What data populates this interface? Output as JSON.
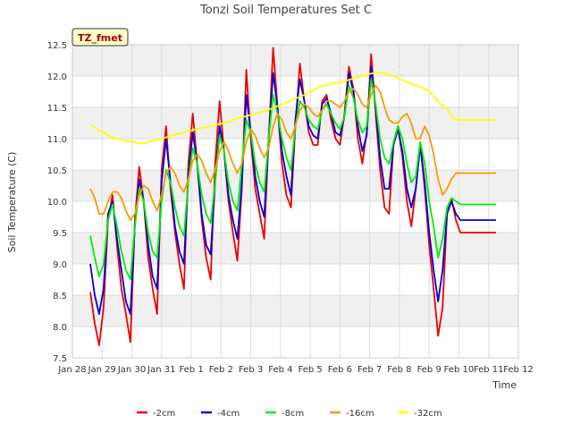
{
  "chart_data": {
    "type": "line",
    "title": "Tonzi Soil Temperatures Set C",
    "xlabel": "Time",
    "ylabel": "Soil Temperature (C)",
    "xlim": [
      0,
      15
    ],
    "ylim": [
      7.5,
      12.5
    ],
    "x_ticks": [
      0,
      1,
      2,
      3,
      4,
      5,
      6,
      7,
      8,
      9,
      10,
      11,
      12,
      13,
      14,
      15
    ],
    "x_tick_labels": [
      "Jan 28",
      "Jan 29",
      "Jan 30",
      "Jan 31",
      "Feb 1",
      "Feb 2",
      "Feb 3",
      "Feb 4",
      "Feb 5",
      "Feb 6",
      "Feb 7",
      "Feb 8",
      "Feb 9",
      "Feb 10",
      "Feb 11",
      "Feb 12"
    ],
    "y_ticks": [
      7.5,
      8.0,
      8.5,
      9.0,
      9.5,
      10.0,
      10.5,
      11.0,
      11.5,
      12.0,
      12.5
    ],
    "y_tick_labels": [
      "7.5",
      "8.0",
      "8.5",
      "9.0",
      "9.5",
      "10.0",
      "10.5",
      "11.0",
      "11.5",
      "12.0",
      "12.5"
    ],
    "grid": true,
    "legend_position": "bottom-center",
    "annotation": "TZ_fmet",
    "series": [
      {
        "name": "-2cm",
        "color": "#ee0000",
        "x": [
          0.6,
          0.75,
          0.9,
          1.05,
          1.2,
          1.35,
          1.5,
          1.65,
          1.8,
          1.95,
          2.1,
          2.25,
          2.4,
          2.55,
          2.7,
          2.85,
          3.0,
          3.15,
          3.3,
          3.45,
          3.6,
          3.75,
          3.9,
          4.05,
          4.2,
          4.35,
          4.5,
          4.65,
          4.8,
          4.95,
          5.1,
          5.25,
          5.4,
          5.55,
          5.7,
          5.85,
          6.0,
          6.15,
          6.3,
          6.45,
          6.6,
          6.75,
          6.9,
          7.05,
          7.2,
          7.35,
          7.5,
          7.65,
          7.8,
          7.95,
          8.1,
          8.25,
          8.4,
          8.55,
          8.7,
          8.85,
          9.0,
          9.15,
          9.3,
          9.45,
          9.6,
          9.75,
          9.9,
          10.05,
          10.2,
          10.35,
          10.5,
          10.65,
          10.8,
          10.95,
          11.1,
          11.25,
          11.4,
          11.55,
          11.7,
          11.85,
          12.0,
          12.15,
          12.3,
          12.45,
          12.6,
          12.75,
          12.9,
          13.05,
          13.2,
          13.35,
          13.5,
          13.65,
          13.8,
          13.95,
          14.1,
          14.25
        ],
        "y": [
          8.55,
          8.05,
          7.7,
          8.3,
          9.7,
          10.1,
          9.3,
          8.6,
          8.2,
          7.75,
          9.7,
          10.55,
          10.0,
          9.1,
          8.6,
          8.2,
          10.5,
          11.2,
          10.2,
          9.5,
          9.0,
          8.6,
          10.6,
          11.4,
          10.6,
          9.7,
          9.1,
          8.75,
          10.6,
          11.6,
          10.8,
          10.0,
          9.5,
          9.05,
          10.2,
          12.1,
          11.0,
          10.2,
          9.8,
          9.4,
          11.0,
          12.45,
          11.5,
          10.6,
          10.1,
          9.9,
          11.2,
          12.2,
          11.6,
          11.1,
          10.9,
          10.9,
          11.6,
          11.7,
          11.3,
          11.0,
          10.9,
          11.4,
          12.15,
          11.8,
          11.0,
          10.6,
          11.1,
          12.35,
          11.4,
          10.5,
          9.9,
          9.8,
          10.9,
          11.2,
          10.7,
          10.0,
          9.6,
          10.2,
          10.9,
          10.2,
          9.3,
          8.6,
          7.85,
          8.3,
          9.8,
          10.05,
          9.7,
          9.5,
          9.5,
          9.5,
          9.5,
          9.5,
          9.5,
          9.5,
          9.5,
          9.5
        ]
      },
      {
        "name": "-4cm",
        "color": "#0000dd",
        "x": [
          0.6,
          0.75,
          0.9,
          1.05,
          1.2,
          1.35,
          1.5,
          1.65,
          1.8,
          1.95,
          2.1,
          2.25,
          2.4,
          2.55,
          2.7,
          2.85,
          3.0,
          3.15,
          3.3,
          3.45,
          3.6,
          3.75,
          3.9,
          4.05,
          4.2,
          4.35,
          4.5,
          4.65,
          4.8,
          4.95,
          5.1,
          5.25,
          5.4,
          5.55,
          5.7,
          5.85,
          6.0,
          6.15,
          6.3,
          6.45,
          6.6,
          6.75,
          6.9,
          7.05,
          7.2,
          7.35,
          7.5,
          7.65,
          7.8,
          7.95,
          8.1,
          8.25,
          8.4,
          8.55,
          8.7,
          8.85,
          9.0,
          9.15,
          9.3,
          9.45,
          9.6,
          9.75,
          9.9,
          10.05,
          10.2,
          10.35,
          10.5,
          10.65,
          10.8,
          10.95,
          11.1,
          11.25,
          11.4,
          11.55,
          11.7,
          11.85,
          12.0,
          12.15,
          12.3,
          12.45,
          12.6,
          12.75,
          12.9,
          13.05,
          13.2,
          13.35,
          13.5,
          13.65,
          13.8,
          13.95,
          14.1,
          14.25
        ],
        "y": [
          9.0,
          8.5,
          8.2,
          8.6,
          9.8,
          10.0,
          9.4,
          8.9,
          8.4,
          8.2,
          9.6,
          10.35,
          10.0,
          9.3,
          8.8,
          8.6,
          10.3,
          11.0,
          10.3,
          9.6,
          9.2,
          9.0,
          10.4,
          11.1,
          10.6,
          9.8,
          9.3,
          9.15,
          10.3,
          11.2,
          10.8,
          10.1,
          9.7,
          9.4,
          10.3,
          11.7,
          11.1,
          10.4,
          10.0,
          9.75,
          11.0,
          12.05,
          11.5,
          10.8,
          10.4,
          10.1,
          11.3,
          11.95,
          11.6,
          11.2,
          11.05,
          11.0,
          11.55,
          11.65,
          11.4,
          11.1,
          11.05,
          11.35,
          12.05,
          11.75,
          11.2,
          10.8,
          11.05,
          12.15,
          11.5,
          10.7,
          10.2,
          10.2,
          10.9,
          11.15,
          10.8,
          10.2,
          9.9,
          10.2,
          10.9,
          10.3,
          9.5,
          8.9,
          8.4,
          8.9,
          9.8,
          10.0,
          9.8,
          9.7,
          9.7,
          9.7,
          9.7,
          9.7,
          9.7,
          9.7,
          9.7,
          9.7
        ]
      },
      {
        "name": "-8cm",
        "color": "#00ee00",
        "x": [
          0.6,
          0.75,
          0.9,
          1.05,
          1.2,
          1.35,
          1.5,
          1.65,
          1.8,
          1.95,
          2.1,
          2.25,
          2.4,
          2.55,
          2.7,
          2.85,
          3.0,
          3.15,
          3.3,
          3.45,
          3.6,
          3.75,
          3.9,
          4.05,
          4.2,
          4.35,
          4.5,
          4.65,
          4.8,
          4.95,
          5.1,
          5.25,
          5.4,
          5.55,
          5.7,
          5.85,
          6.0,
          6.15,
          6.3,
          6.45,
          6.6,
          6.75,
          6.9,
          7.05,
          7.2,
          7.35,
          7.5,
          7.65,
          7.8,
          7.95,
          8.1,
          8.25,
          8.4,
          8.55,
          8.7,
          8.85,
          9.0,
          9.15,
          9.3,
          9.45,
          9.6,
          9.75,
          9.9,
          10.05,
          10.2,
          10.35,
          10.5,
          10.65,
          10.8,
          10.95,
          11.1,
          11.25,
          11.4,
          11.55,
          11.7,
          11.85,
          12.0,
          12.15,
          12.3,
          12.45,
          12.6,
          12.75,
          12.9,
          13.05,
          13.2,
          13.35,
          13.5,
          13.65,
          13.8,
          13.95,
          14.1,
          14.25
        ],
        "y": [
          9.45,
          9.1,
          8.8,
          9.0,
          9.7,
          9.95,
          9.6,
          9.2,
          8.9,
          8.75,
          9.6,
          10.2,
          10.0,
          9.5,
          9.2,
          9.1,
          10.0,
          10.5,
          10.3,
          9.9,
          9.6,
          9.45,
          10.3,
          10.85,
          10.6,
          10.1,
          9.8,
          9.65,
          10.3,
          11.05,
          10.8,
          10.3,
          10.0,
          9.85,
          10.6,
          11.3,
          11.1,
          10.6,
          10.3,
          10.15,
          11.0,
          11.7,
          11.4,
          11.0,
          10.7,
          10.5,
          11.2,
          11.6,
          11.5,
          11.3,
          11.2,
          11.15,
          11.45,
          11.55,
          11.4,
          11.25,
          11.15,
          11.35,
          11.85,
          11.65,
          11.3,
          11.1,
          11.2,
          11.95,
          11.55,
          11.0,
          10.7,
          10.6,
          10.95,
          11.2,
          11.0,
          10.6,
          10.3,
          10.4,
          10.95,
          10.6,
          10.0,
          9.6,
          9.1,
          9.4,
          9.9,
          10.05,
          10.0,
          9.95,
          9.95,
          9.95,
          9.95,
          9.95,
          9.95,
          9.95,
          9.95,
          9.95
        ]
      },
      {
        "name": "-16cm",
        "color": "#ff9900",
        "x": [
          0.6,
          0.75,
          0.9,
          1.05,
          1.2,
          1.35,
          1.5,
          1.65,
          1.8,
          1.95,
          2.1,
          2.25,
          2.4,
          2.55,
          2.7,
          2.85,
          3.0,
          3.15,
          3.3,
          3.45,
          3.6,
          3.75,
          3.9,
          4.05,
          4.2,
          4.35,
          4.5,
          4.65,
          4.8,
          4.95,
          5.1,
          5.25,
          5.4,
          5.55,
          5.7,
          5.85,
          6.0,
          6.15,
          6.3,
          6.45,
          6.6,
          6.75,
          6.9,
          7.05,
          7.2,
          7.35,
          7.5,
          7.65,
          7.8,
          7.95,
          8.1,
          8.25,
          8.4,
          8.55,
          8.7,
          8.85,
          9.0,
          9.15,
          9.3,
          9.45,
          9.6,
          9.75,
          9.9,
          10.05,
          10.2,
          10.35,
          10.5,
          10.65,
          10.8,
          10.95,
          11.1,
          11.25,
          11.4,
          11.55,
          11.7,
          11.85,
          12.0,
          12.15,
          12.3,
          12.45,
          12.6,
          12.75,
          12.9,
          13.05,
          13.2,
          13.35,
          13.5,
          13.65,
          13.8,
          13.95,
          14.1,
          14.25
        ],
        "y": [
          10.2,
          10.05,
          9.8,
          9.8,
          10.0,
          10.15,
          10.15,
          10.05,
          9.85,
          9.7,
          9.8,
          10.1,
          10.25,
          10.2,
          10.0,
          9.85,
          10.1,
          10.45,
          10.55,
          10.45,
          10.25,
          10.15,
          10.35,
          10.65,
          10.75,
          10.65,
          10.45,
          10.3,
          10.5,
          10.8,
          10.95,
          10.8,
          10.6,
          10.45,
          10.6,
          10.95,
          11.15,
          11.05,
          10.85,
          10.7,
          10.85,
          11.2,
          11.4,
          11.3,
          11.1,
          11.0,
          11.2,
          11.45,
          11.55,
          11.5,
          11.4,
          11.35,
          11.45,
          11.6,
          11.6,
          11.55,
          11.5,
          11.6,
          11.75,
          11.8,
          11.7,
          11.55,
          11.5,
          11.7,
          11.85,
          11.75,
          11.5,
          11.3,
          11.25,
          11.25,
          11.35,
          11.4,
          11.25,
          11.0,
          11.0,
          11.2,
          11.05,
          10.75,
          10.35,
          10.1,
          10.2,
          10.35,
          10.45,
          10.45,
          10.45,
          10.45,
          10.45,
          10.45,
          10.45,
          10.45,
          10.45,
          10.45
        ]
      },
      {
        "name": "-32cm",
        "color": "#ffff00",
        "x": [
          0.6,
          0.75,
          0.9,
          1.05,
          1.2,
          1.35,
          1.5,
          1.65,
          1.8,
          1.95,
          2.1,
          2.25,
          2.4,
          2.55,
          2.7,
          2.85,
          3.0,
          3.15,
          3.3,
          3.45,
          3.6,
          3.75,
          3.9,
          4.05,
          4.2,
          4.35,
          4.5,
          4.65,
          4.8,
          4.95,
          5.1,
          5.25,
          5.4,
          5.55,
          5.7,
          5.85,
          6.0,
          6.15,
          6.3,
          6.45,
          6.6,
          6.75,
          6.9,
          7.05,
          7.2,
          7.35,
          7.5,
          7.65,
          7.8,
          7.95,
          8.1,
          8.25,
          8.4,
          8.55,
          8.7,
          8.85,
          9.0,
          9.15,
          9.3,
          9.45,
          9.6,
          9.75,
          9.9,
          10.05,
          10.2,
          10.35,
          10.5,
          10.65,
          10.8,
          10.95,
          11.1,
          11.25,
          11.4,
          11.55,
          11.7,
          11.85,
          12.0,
          12.15,
          12.3,
          12.45,
          12.6,
          12.75,
          12.9,
          13.05,
          13.2,
          13.35,
          13.5,
          13.65,
          13.8,
          13.95,
          14.1,
          14.25
        ],
        "y": [
          11.22,
          11.18,
          11.13,
          11.1,
          11.05,
          11.02,
          11.0,
          10.98,
          10.96,
          10.95,
          10.94,
          10.93,
          10.92,
          10.95,
          10.97,
          10.98,
          11.0,
          11.02,
          11.04,
          11.06,
          11.08,
          11.1,
          11.12,
          11.14,
          11.16,
          11.17,
          11.18,
          11.2,
          11.22,
          11.24,
          11.25,
          11.27,
          11.3,
          11.32,
          11.34,
          11.36,
          11.38,
          11.4,
          11.42,
          11.44,
          11.46,
          11.49,
          11.52,
          11.55,
          11.58,
          11.61,
          11.64,
          11.67,
          11.7,
          11.74,
          11.78,
          11.81,
          11.84,
          11.86,
          11.88,
          11.89,
          11.9,
          11.92,
          11.94,
          11.96,
          11.98,
          12.0,
          12.02,
          12.04,
          12.05,
          12.05,
          12.04,
          12.03,
          12.0,
          11.97,
          11.93,
          11.9,
          11.87,
          11.85,
          11.83,
          11.8,
          11.75,
          11.68,
          11.6,
          11.52,
          11.48,
          11.35,
          11.3,
          11.3,
          11.3,
          11.3,
          11.3,
          11.3,
          11.3,
          11.3,
          11.3,
          11.3
        ]
      }
    ]
  }
}
